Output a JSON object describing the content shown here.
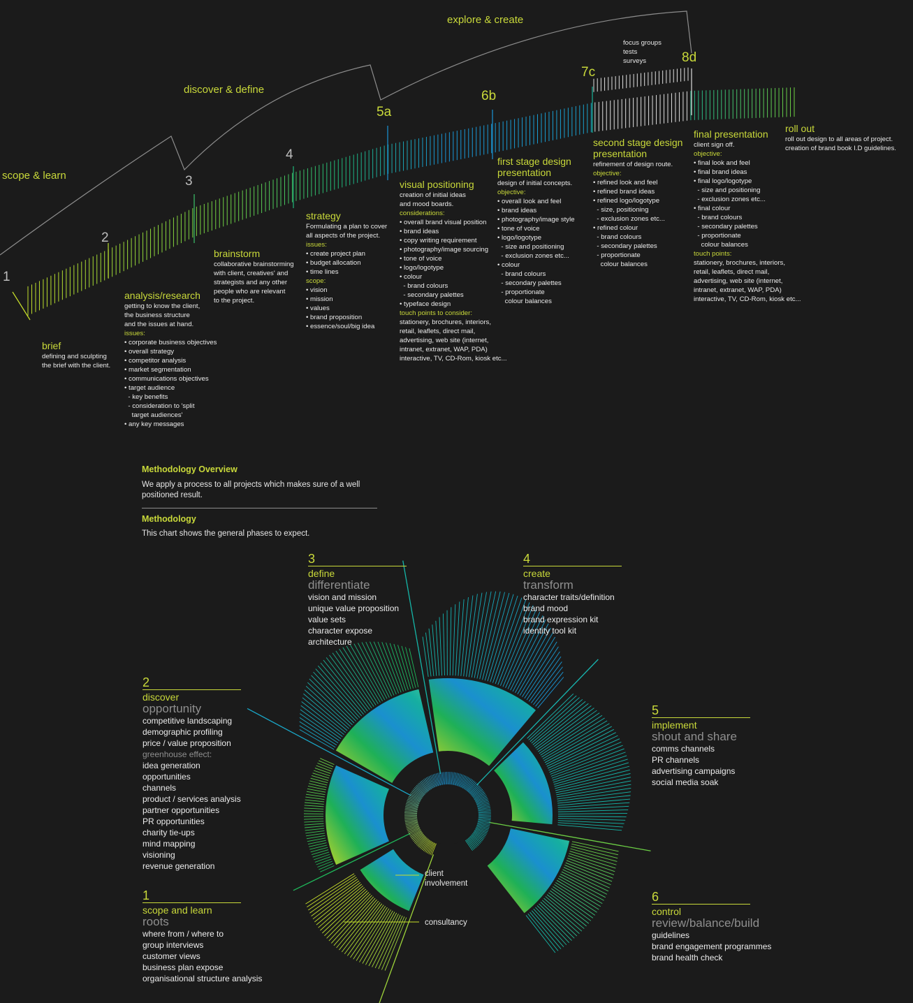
{
  "timeline": {
    "arc_labels": [
      "scope & learn",
      "discover & define",
      "explore & create"
    ],
    "numbers": [
      "1",
      "2",
      "3",
      "4",
      "5a",
      "6b",
      "7c",
      "8d"
    ],
    "focus_note": [
      "focus groups",
      "tests",
      "surveys"
    ],
    "stages": [
      {
        "title": "brief",
        "lines": [
          {
            "t": "defining and sculpting"
          },
          {
            "t": "the brief with the client."
          }
        ]
      },
      {
        "title": "analysis/research",
        "lines": [
          {
            "t": "getting to know the client,"
          },
          {
            "t": "the business structure"
          },
          {
            "t": "and the issues at hand."
          },
          {
            "t": "issues:",
            "h": true
          },
          {
            "t": "• corporate business objectives"
          },
          {
            "t": "• overall strategy"
          },
          {
            "t": "• competitor analysis"
          },
          {
            "t": "• market segmentation"
          },
          {
            "t": "• communications objectives"
          },
          {
            "t": "• target audience"
          },
          {
            "t": "  - key benefits"
          },
          {
            "t": "  - consideration to 'split"
          },
          {
            "t": "    target audiences'"
          },
          {
            "t": "• any key messages"
          }
        ]
      },
      {
        "title": "brainstorm",
        "lines": [
          {
            "t": "collaborative brainstorming"
          },
          {
            "t": "with client, creatives' and"
          },
          {
            "t": "strategists and any other"
          },
          {
            "t": "people who are relevant"
          },
          {
            "t": "to the project."
          }
        ]
      },
      {
        "title": "strategy",
        "lines": [
          {
            "t": "Formulating a plan to cover"
          },
          {
            "t": "all aspects of the project."
          },
          {
            "t": "issues:",
            "h": true
          },
          {
            "t": "• create project plan"
          },
          {
            "t": "• budget allocation"
          },
          {
            "t": "• time lines"
          },
          {
            "t": "scope:",
            "h": true
          },
          {
            "t": "• vision"
          },
          {
            "t": "• mission"
          },
          {
            "t": "• values"
          },
          {
            "t": "• brand proposition"
          },
          {
            "t": "• essence/soul/big idea"
          }
        ]
      },
      {
        "title": "visual positioning",
        "lines": [
          {
            "t": "creation of initial ideas"
          },
          {
            "t": "and mood boards."
          },
          {
            "t": "considerations:",
            "h": true
          },
          {
            "t": "• overall brand visual position"
          },
          {
            "t": "• brand ideas"
          },
          {
            "t": "• copy writing requirement"
          },
          {
            "t": "• photography/image sourcing"
          },
          {
            "t": "• tone of voice"
          },
          {
            "t": "• logo/logotype"
          },
          {
            "t": "• colour"
          },
          {
            "t": "  - brand colours"
          },
          {
            "t": "  - secondary palettes"
          },
          {
            "t": "• typeface design"
          },
          {
            "t": "touch points to consider:",
            "h": true
          },
          {
            "t": "stationery, brochures, interiors,"
          },
          {
            "t": "retail, leaflets, direct mail,"
          },
          {
            "t": "advertising, web site (internet,"
          },
          {
            "t": "intranet, extranet, WAP, PDA)"
          },
          {
            "t": "interactive, TV, CD-Rom, kiosk etc..."
          }
        ]
      },
      {
        "title": "first stage design",
        "title2": "presentation",
        "lines": [
          {
            "t": "design of initial concepts."
          },
          {
            "t": "objective:",
            "h": true
          },
          {
            "t": "• overall look and feel"
          },
          {
            "t": "• brand ideas"
          },
          {
            "t": "• photography/image style"
          },
          {
            "t": "• tone of voice"
          },
          {
            "t": "• logo/logotype"
          },
          {
            "t": "  - size and positioning"
          },
          {
            "t": "  - exclusion zones etc..."
          },
          {
            "t": "• colour"
          },
          {
            "t": "  - brand colours"
          },
          {
            "t": "  - secondary palettes"
          },
          {
            "t": "  - proportionate"
          },
          {
            "t": "    colour balances"
          }
        ]
      },
      {
        "title": "second stage design",
        "title2": "presentation",
        "lines": [
          {
            "t": "refinement of design route."
          },
          {
            "t": "objective:",
            "h": true
          },
          {
            "t": "• refined look and feel"
          },
          {
            "t": "• refined brand ideas"
          },
          {
            "t": "• refined logo/logotype"
          },
          {
            "t": "  - size, positioning"
          },
          {
            "t": "  - exclusion zones etc..."
          },
          {
            "t": "• refined colour"
          },
          {
            "t": "  - brand colours"
          },
          {
            "t": "  - secondary palettes"
          },
          {
            "t": "  - proportionate"
          },
          {
            "t": "    colour balances"
          }
        ]
      },
      {
        "title": "final presentation",
        "lines": [
          {
            "t": "client sign off."
          },
          {
            "t": "objective:",
            "h": true
          },
          {
            "t": "• final look and feel"
          },
          {
            "t": "• final brand ideas"
          },
          {
            "t": "• final logo/logotype"
          },
          {
            "t": "  - size and positioning"
          },
          {
            "t": "  - exclusion zones etc..."
          },
          {
            "t": "• final colour"
          },
          {
            "t": "  - brand colours"
          },
          {
            "t": "  - secondary palettes"
          },
          {
            "t": "  - proportionate"
          },
          {
            "t": "    colour balances"
          },
          {
            "t": "touch points:",
            "h": true
          },
          {
            "t": "stationery, brochures, interiors,"
          },
          {
            "t": "retail, leaflets, direct mail,"
          },
          {
            "t": "advertising, web site (internet,"
          },
          {
            "t": "intranet, extranet, WAP, PDA)"
          },
          {
            "t": "interactive, TV, CD-Rom, kiosk etc..."
          }
        ]
      },
      {
        "title": "roll out",
        "lines": [
          {
            "t": "roll out design to all areas of project."
          },
          {
            "t": "creation of brand book I.D guidelines."
          }
        ]
      }
    ]
  },
  "overview": {
    "heading": "Methodology Overview",
    "text": "We apply a process to all projects which makes sure of a well positioned result.",
    "heading2": "Methodology",
    "text2": "This chart shows the general phases to expect."
  },
  "phases": [
    {
      "num": "1",
      "verb": "scope and learn",
      "big": "roots",
      "items": [
        {
          "t": "where from / where to"
        },
        {
          "t": "group interviews"
        },
        {
          "t": "customer views"
        },
        {
          "t": "business plan expose"
        },
        {
          "t": "organisational structure analysis"
        }
      ]
    },
    {
      "num": "2",
      "verb": "discover",
      "big": "opportunity",
      "items": [
        {
          "t": "competitive landscaping"
        },
        {
          "t": "demographic profiling"
        },
        {
          "t": "price / value proposition"
        },
        {
          "t": "greenhouse effect:",
          "g": true
        },
        {
          "t": "idea generation"
        },
        {
          "t": "opportunities"
        },
        {
          "t": "channels"
        },
        {
          "t": "product / services analysis"
        },
        {
          "t": "partner opportunities"
        },
        {
          "t": "PR opportunities"
        },
        {
          "t": "charity tie-ups"
        },
        {
          "t": "mind mapping"
        },
        {
          "t": "visioning"
        },
        {
          "t": "revenue generation"
        }
      ]
    },
    {
      "num": "3",
      "verb": "define",
      "big": "differentiate",
      "items": [
        {
          "t": "vision and mission"
        },
        {
          "t": "unique value proposition"
        },
        {
          "t": "value sets"
        },
        {
          "t": "character expose"
        },
        {
          "t": "architecture"
        }
      ]
    },
    {
      "num": "4",
      "verb": "create",
      "big": "transform",
      "items": [
        {
          "t": "character traits/definition"
        },
        {
          "t": "brand mood"
        },
        {
          "t": "brand expression kit"
        },
        {
          "t": "identity tool kit"
        }
      ]
    },
    {
      "num": "5",
      "verb": "implement",
      "big": "shout and share",
      "items": [
        {
          "t": "comms channels"
        },
        {
          "t": "PR channels"
        },
        {
          "t": "advertising campaigns"
        },
        {
          "t": "social media soak"
        }
      ]
    },
    {
      "num": "6",
      "verb": "control",
      "big": "review/balance/build",
      "items": [
        {
          "t": "guidelines"
        },
        {
          "t": "brand engagement programmes"
        },
        {
          "t": "brand health check"
        }
      ]
    }
  ],
  "callouts": {
    "client": "client\ninvolvement",
    "consultancy": "consultancy"
  },
  "colors": {
    "accent": "#c9d93a",
    "background": "#1b1b1b",
    "yellow": "#c8e02a",
    "green": "#1fb85a",
    "teal": "#15b6a8",
    "blue": "#1a96d8"
  }
}
